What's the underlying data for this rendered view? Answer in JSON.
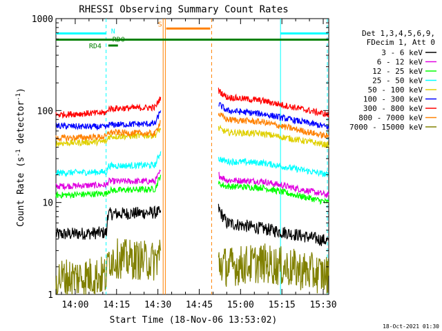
{
  "chart_data": {
    "type": "line",
    "title": "RHESSI Observing Summary Count Rates",
    "xlabel": "Start Time (18-Nov-06 13:53:02)",
    "ylabel_main": "Count Rate (s",
    "ylabel_sup1": "-1",
    "ylabel_mid": " detector",
    "ylabel_sup2": "-1",
    "ylabel_end": ")",
    "y_scale": "log",
    "ylim": [
      1,
      1000
    ],
    "xlim_minutes": [
      0,
      99
    ],
    "x_ticks": [
      {
        "minute": 7,
        "label": "14:00"
      },
      {
        "minute": 22,
        "label": "14:15"
      },
      {
        "minute": 37,
        "label": "14:30"
      },
      {
        "minute": 52,
        "label": "14:45"
      },
      {
        "minute": 67,
        "label": "15:00"
      },
      {
        "minute": 82,
        "label": "15:15"
      },
      {
        "minute": 97,
        "label": "15:30"
      }
    ],
    "y_ticks": [
      {
        "value": 1,
        "label": "1"
      },
      {
        "value": 10,
        "label": "10"
      },
      {
        "value": 100,
        "label": "100"
      },
      {
        "value": 1000,
        "label": "1000"
      }
    ],
    "legend_header": [
      "Det 1,3,4,5,6,9,",
      "FDecim 1, Att 0"
    ],
    "legend_position": "right",
    "series": [
      {
        "name": "3 - 6 keV",
        "color": "#000000",
        "segments": [
          [
            [
              0,
              4.5
            ],
            [
              18.5,
              4.7
            ],
            [
              18.7,
              7.5
            ],
            [
              38,
              7.8
            ]
          ],
          [
            [
              59,
              8.5
            ],
            [
              62,
              6
            ],
            [
              70,
              5.5
            ],
            [
              82,
              4.8
            ],
            [
              99,
              3.8
            ]
          ]
        ]
      },
      {
        "name": "6 - 12 keV",
        "color": "#e000e0",
        "segments": [
          [
            [
              0,
              15
            ],
            [
              18.5,
              15.5
            ],
            [
              19,
              17
            ],
            [
              36,
              17
            ],
            [
              38,
              22
            ]
          ],
          [
            [
              59,
              20
            ],
            [
              62,
              17.5
            ],
            [
              75,
              17
            ],
            [
              99,
              12
            ]
          ]
        ]
      },
      {
        "name": "12 - 25 keV",
        "color": "#00ff00",
        "segments": [
          [
            [
              0,
              12
            ],
            [
              18.5,
              12.5
            ],
            [
              19,
              13.5
            ],
            [
              36,
              14
            ],
            [
              38,
              20
            ]
          ],
          [
            [
              59,
              16
            ],
            [
              62,
              15
            ],
            [
              75,
              14.5
            ],
            [
              99,
              10
            ]
          ]
        ]
      },
      {
        "name": "25 - 50 keV",
        "color": "#00ffff",
        "segments": [
          [
            [
              0,
              21
            ],
            [
              18.5,
              21.5
            ],
            [
              19,
              25
            ],
            [
              36,
              25.5
            ],
            [
              38,
              36
            ]
          ],
          [
            [
              59,
              30
            ],
            [
              62,
              28
            ],
            [
              75,
              27
            ],
            [
              99,
              20
            ]
          ]
        ]
      },
      {
        "name": "50 - 100 keV",
        "color": "#e0d000",
        "segments": [
          [
            [
              0,
              44
            ],
            [
              18.5,
              46
            ],
            [
              19,
              52
            ],
            [
              36,
              54
            ],
            [
              38,
              64
            ]
          ],
          [
            [
              59,
              64
            ],
            [
              62,
              58
            ],
            [
              75,
              56
            ],
            [
              99,
              42
            ]
          ]
        ]
      },
      {
        "name": "100 - 300 keV",
        "color": "#0000ff",
        "segments": [
          [
            [
              0,
              68
            ],
            [
              18.5,
              66
            ],
            [
              19,
              70
            ],
            [
              36,
              72
            ],
            [
              38,
              100
            ]
          ],
          [
            [
              59,
              118
            ],
            [
              62,
              100
            ],
            [
              75,
              92
            ],
            [
              99,
              66
            ]
          ]
        ]
      },
      {
        "name": "300 - 800 keV",
        "color": "#ff0000",
        "segments": [
          [
            [
              0,
              90
            ],
            [
              18.5,
              95
            ],
            [
              19,
              105
            ],
            [
              36,
              108
            ],
            [
              38,
              140
            ]
          ],
          [
            [
              59,
              165
            ],
            [
              62,
              140
            ],
            [
              75,
              128
            ],
            [
              99,
              90
            ]
          ]
        ]
      },
      {
        "name": "800 - 7000 keV",
        "color": "#ff8000",
        "segments": [
          [
            [
              0,
              50
            ],
            [
              18.5,
              52
            ],
            [
              19,
              58
            ],
            [
              36,
              56
            ],
            [
              38,
              78
            ]
          ],
          [
            [
              59,
              92
            ],
            [
              62,
              80
            ],
            [
              75,
              75
            ],
            [
              99,
              52
            ]
          ]
        ]
      },
      {
        "name": "7000 - 15000 keV",
        "color": "#808000",
        "segments": [
          [
            [
              0,
              1.5
            ],
            [
              18.5,
              1.6
            ],
            [
              19,
              2.5
            ],
            [
              36,
              2.3
            ],
            [
              38,
              3
            ]
          ],
          [
            [
              59,
              2.2
            ],
            [
              62,
              2
            ],
            [
              75,
              2.2
            ],
            [
              99,
              1.6
            ]
          ]
        ]
      }
    ],
    "annotations": [
      {
        "label": "N",
        "color": "#00ffff",
        "minute": 20,
        "value": 690
      },
      {
        "label": "RD0",
        "color": "#008000",
        "minute": 20.5,
        "value": 560
      },
      {
        "label": "RD4",
        "color": "#008000",
        "minute": 12,
        "value": 475
      },
      {
        "label": "S",
        "color": "#ff8000",
        "minute": 37,
        "value": 820
      }
    ],
    "state_bars": [
      {
        "color": "#00ffff",
        "start": 0,
        "end": 18.3,
        "value": 690
      },
      {
        "color": "#00ffff",
        "start": 81.5,
        "end": 99,
        "value": 690
      },
      {
        "color": "#008000",
        "start": 0,
        "end": 99,
        "value": 590
      },
      {
        "color": "#008000",
        "start": 19,
        "end": 22.5,
        "value": 510
      },
      {
        "color": "#ff8000",
        "start": 40,
        "end": 56,
        "value": 780
      }
    ],
    "vertical_markers": [
      {
        "minute": 18.2,
        "color": "#00ffff",
        "style": "dashed"
      },
      {
        "minute": 81.5,
        "color": "#00ffff",
        "style": "solid"
      },
      {
        "minute": 98.5,
        "color": "#00ffff",
        "style": "dashed"
      },
      {
        "minute": 38.9,
        "color": "#ff8000",
        "style": "solid"
      },
      {
        "minute": 39.7,
        "color": "#ff8000",
        "style": "solid"
      },
      {
        "minute": 56.5,
        "color": "#ff8000",
        "style": "dashed"
      }
    ]
  },
  "footer_timestamp": "18-Oct-2021 01:30"
}
